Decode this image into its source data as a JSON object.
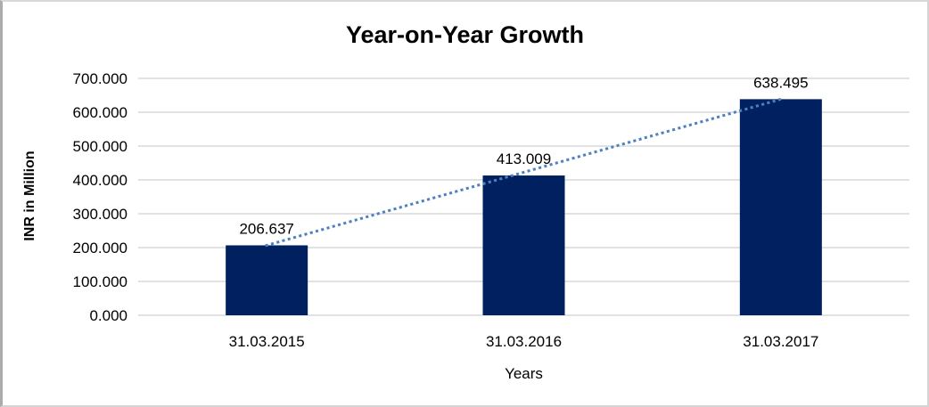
{
  "window": {
    "background": "#ffffff",
    "border_color": "#d4d4d4"
  },
  "chart_data": {
    "type": "bar",
    "title": "Year-on-Year Growth",
    "xlabel": "Years",
    "ylabel": "INR in Million",
    "categories": [
      "31.03.2015",
      "31.03.2016",
      "31.03.2017"
    ],
    "values": [
      206.637,
      413.009,
      638.495
    ],
    "value_labels": [
      "206.637",
      "413.009",
      "638.495"
    ],
    "y_ticks": [
      "700.000",
      "600.000",
      "500.000",
      "400.000",
      "300.000",
      "200.000",
      "100.000",
      "0.000"
    ],
    "ylim": [
      0,
      700
    ],
    "y_step": 100,
    "grid": true,
    "legend": false,
    "bar_color": "#002060",
    "gridline_color": "#d9d9d9",
    "text_color": "#000000",
    "trendline": {
      "type": "linear",
      "style": "dotted",
      "color": "#4e81bd"
    }
  }
}
